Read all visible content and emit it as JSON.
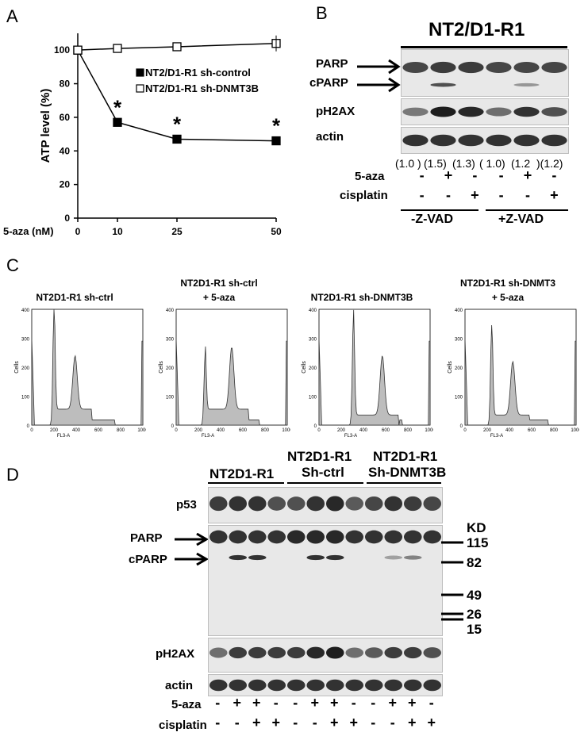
{
  "panel_a": {
    "letter": "A",
    "chart_data": {
      "type": "line",
      "x": [
        0,
        10,
        25,
        50
      ],
      "x_tick_labels": [
        "0",
        "10",
        "25",
        "50"
      ],
      "y_ticks": [
        "0",
        "20",
        "40",
        "60",
        "80",
        "100"
      ],
      "ylim": [
        0,
        110
      ],
      "ylabel": "ATP level (%)",
      "xlabel": "5-aza (nM)",
      "series": [
        {
          "name": "NT2/D1-R1 sh-control",
          "marker": "filled-square",
          "values": [
            100,
            57,
            47,
            46
          ],
          "significance": [
            "",
            "*",
            "*",
            "*"
          ]
        },
        {
          "name": "NT2/D1-R1 sh-DNMT3B",
          "marker": "open-square",
          "values": [
            100,
            101,
            102,
            104
          ],
          "significance": [
            "",
            "",
            "",
            ""
          ]
        }
      ],
      "legend": "top-right"
    }
  },
  "panel_b": {
    "letter": "B",
    "cell_line": "NT2/D1-R1",
    "rows": [
      "PARP",
      "cPARP",
      "pH2AX",
      "actin"
    ],
    "quant": [
      "(1.0 )",
      "(1.5)",
      "(1.3)",
      "( 1.0)",
      "(1.2",
      ")(1.2)"
    ],
    "treat_5aza": [
      "-",
      "+",
      "-",
      "-",
      "+",
      "-"
    ],
    "treat_cisplatin": [
      "-",
      "-",
      "+",
      "-",
      "-",
      "+"
    ],
    "treat_label_5aza": "5-aza",
    "treat_label_cisplatin": "cisplatin",
    "group_labels": [
      "-Z-VAD",
      "+Z-VAD"
    ]
  },
  "panel_c": {
    "letter": "C",
    "histograms": [
      {
        "title": "NT2D1-R1 sh-ctrl",
        "subtitle": ""
      },
      {
        "title": "NT2D1-R1 sh-ctrl",
        "subtitle": "+ 5-aza"
      },
      {
        "title": "NT2D1-R1 sh-DNMT3B",
        "subtitle": ""
      },
      {
        "title": "NT2D1-R1 sh-DNMT3",
        "subtitle": "+ 5-aza"
      }
    ],
    "y_ticks": [
      "0",
      "100",
      "200",
      "300",
      "400"
    ],
    "x_ticks": [
      "0",
      "200",
      "400",
      "600",
      "800",
      "1000"
    ],
    "ylabel": "Cells",
    "xlabel": "FL3-A"
  },
  "panel_d": {
    "letter": "D",
    "groups": [
      {
        "line1": "NT2D1-R1",
        "line2": ""
      },
      {
        "line1": "NT2D1-R1",
        "line2": "Sh-ctrl"
      },
      {
        "line1": "NT2D1-R1",
        "line2": "Sh-DNMT3B"
      }
    ],
    "rows": [
      "p53",
      "PARP",
      "cPARP",
      "pH2AX",
      "actin"
    ],
    "kd_label": "KD",
    "markers": [
      "115",
      "82",
      "49",
      "26",
      "15"
    ],
    "treat_5aza": [
      "-",
      "+",
      "+",
      "-",
      "-",
      "+",
      "+",
      "-",
      "-",
      "+",
      "+",
      "-"
    ],
    "treat_cisplatin": [
      "-",
      "-",
      "+",
      "+",
      "-",
      "-",
      "+",
      "+",
      "-",
      "-",
      "+",
      "+"
    ],
    "treat_label_5aza": "5-aza",
    "treat_label_cisplatin": "cisplatin"
  }
}
